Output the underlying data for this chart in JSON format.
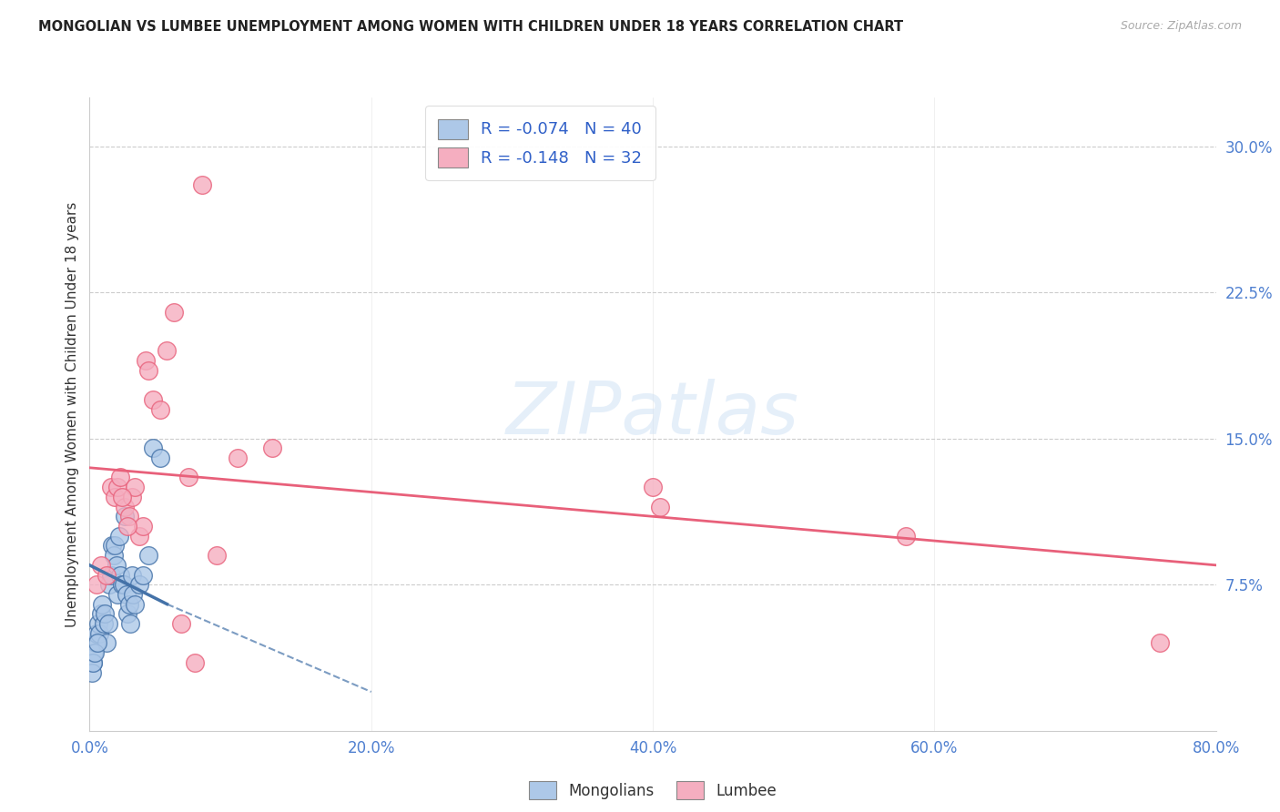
{
  "title": "MONGOLIAN VS LUMBEE UNEMPLOYMENT AMONG WOMEN WITH CHILDREN UNDER 18 YEARS CORRELATION CHART",
  "source": "Source: ZipAtlas.com",
  "ylabel": "Unemployment Among Women with Children Under 18 years",
  "xlabel_ticks": [
    "0.0%",
    "20.0%",
    "40.0%",
    "60.0%",
    "80.0%"
  ],
  "xlabel_vals": [
    0.0,
    20.0,
    40.0,
    60.0,
    80.0
  ],
  "ylabel_ticks": [
    "7.5%",
    "15.0%",
    "22.5%",
    "30.0%"
  ],
  "ylabel_vals": [
    7.5,
    15.0,
    22.5,
    30.0
  ],
  "xlim": [
    0.0,
    80.0
  ],
  "ylim": [
    0.0,
    32.5
  ],
  "mongolian_R": -0.074,
  "mongolian_N": 40,
  "lumbee_R": -0.148,
  "lumbee_N": 32,
  "mongolian_color": "#adc8e8",
  "lumbee_color": "#f5aec0",
  "mongolian_line_color": "#4472a8",
  "lumbee_line_color": "#e8607a",
  "background_color": "#ffffff",
  "grid_color": "#cccccc",
  "mongolians_x": [
    0.2,
    0.3,
    0.4,
    0.5,
    0.6,
    0.7,
    0.8,
    0.9,
    1.0,
    1.1,
    1.2,
    1.3,
    1.4,
    1.5,
    1.6,
    1.7,
    1.8,
    1.9,
    2.0,
    2.1,
    2.2,
    2.3,
    2.4,
    2.5,
    2.6,
    2.7,
    2.8,
    2.9,
    3.0,
    3.1,
    3.2,
    3.5,
    3.8,
    4.2,
    4.5,
    5.0,
    0.15,
    0.25,
    0.35,
    0.55
  ],
  "mongolians_y": [
    3.5,
    4.0,
    4.5,
    5.0,
    5.5,
    5.0,
    6.0,
    6.5,
    5.5,
    6.0,
    4.5,
    5.5,
    7.5,
    8.0,
    9.5,
    9.0,
    9.5,
    8.5,
    7.0,
    10.0,
    8.0,
    7.5,
    7.5,
    11.0,
    7.0,
    6.0,
    6.5,
    5.5,
    8.0,
    7.0,
    6.5,
    7.5,
    8.0,
    9.0,
    14.5,
    14.0,
    3.0,
    3.5,
    4.0,
    4.5
  ],
  "lumbee_x": [
    0.5,
    0.8,
    1.2,
    1.5,
    1.8,
    2.0,
    2.2,
    2.5,
    2.8,
    3.0,
    3.2,
    3.5,
    3.8,
    4.0,
    4.2,
    4.5,
    5.0,
    5.5,
    6.0,
    7.0,
    8.0,
    9.0,
    10.5,
    13.0,
    40.0,
    40.5,
    58.0,
    76.0,
    2.3,
    2.7,
    6.5,
    7.5
  ],
  "lumbee_y": [
    7.5,
    8.5,
    8.0,
    12.5,
    12.0,
    12.5,
    13.0,
    11.5,
    11.0,
    12.0,
    12.5,
    10.0,
    10.5,
    19.0,
    18.5,
    17.0,
    16.5,
    19.5,
    21.5,
    13.0,
    28.0,
    9.0,
    14.0,
    14.5,
    12.5,
    11.5,
    10.0,
    4.5,
    12.0,
    10.5,
    5.5,
    3.5
  ],
  "lumbee_line_x0": 0.0,
  "lumbee_line_y0": 13.5,
  "lumbee_line_x1": 80.0,
  "lumbee_line_y1": 8.5,
  "mongolian_solid_x0": 0.0,
  "mongolian_solid_y0": 8.5,
  "mongolian_solid_x1": 5.5,
  "mongolian_solid_y1": 6.5,
  "mongolian_dash_x0": 5.5,
  "mongolian_dash_y0": 6.5,
  "mongolian_dash_x1": 20.0,
  "mongolian_dash_y1": 2.0
}
